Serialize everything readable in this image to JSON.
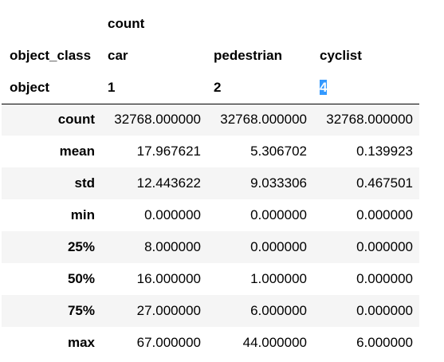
{
  "table": {
    "header_rows": [
      {
        "index_label": "",
        "cells": [
          "count",
          "",
          ""
        ]
      },
      {
        "index_label": "object_class",
        "cells": [
          "car",
          "pedestrian",
          "cyclist"
        ]
      },
      {
        "index_label": "object",
        "cells": [
          "1",
          "2",
          "4"
        ]
      }
    ],
    "selected_header_cell": "4",
    "rows": [
      {
        "label": "count",
        "values": [
          "32768.000000",
          "32768.000000",
          "32768.000000"
        ]
      },
      {
        "label": "mean",
        "values": [
          "17.967621",
          "5.306702",
          "0.139923"
        ]
      },
      {
        "label": "std",
        "values": [
          "12.443622",
          "9.033306",
          "0.467501"
        ]
      },
      {
        "label": "min",
        "values": [
          "0.000000",
          "0.000000",
          "0.000000"
        ]
      },
      {
        "label": "25%",
        "values": [
          "8.000000",
          "0.000000",
          "0.000000"
        ]
      },
      {
        "label": "50%",
        "values": [
          "16.000000",
          "1.000000",
          "0.000000"
        ]
      },
      {
        "label": "75%",
        "values": [
          "27.000000",
          "6.000000",
          "0.000000"
        ]
      },
      {
        "label": "max",
        "values": [
          "67.000000",
          "44.000000",
          "6.000000"
        ]
      }
    ]
  },
  "colors": {
    "stripe": "#f5f5f5",
    "selection": "#3399ff",
    "header_rule": "#000000"
  }
}
